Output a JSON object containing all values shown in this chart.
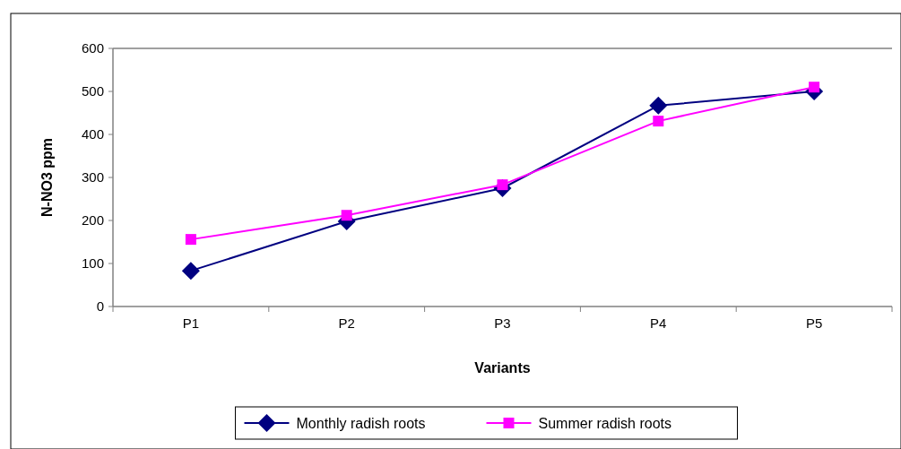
{
  "chart_data": {
    "type": "line",
    "xlabel": "Variants",
    "ylabel": "N-NO3 ppm",
    "categories": [
      "P1",
      "P2",
      "P3",
      "P4",
      "P5"
    ],
    "series": [
      {
        "name": "Monthly radish roots",
        "color": "#000080",
        "marker": "diamond",
        "values": [
          83,
          198,
          275,
          467,
          500
        ]
      },
      {
        "name": "Summer radish roots",
        "color": "#ff00ff",
        "marker": "square",
        "values": [
          156,
          212,
          283,
          431,
          510
        ]
      }
    ],
    "ylim": [
      0,
      600
    ],
    "yticks": [
      0,
      100,
      200,
      300,
      400,
      500,
      600
    ],
    "grid": false,
    "legend": "bottom",
    "line_style": "solid"
  }
}
